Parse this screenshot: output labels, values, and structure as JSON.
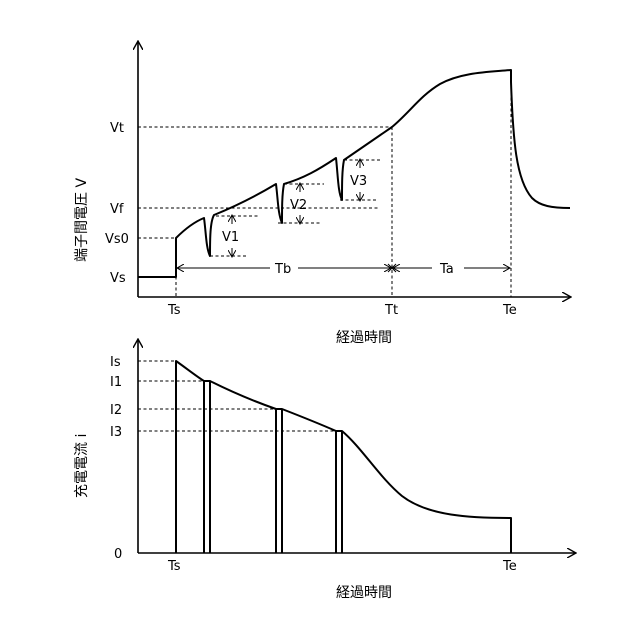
{
  "top_chart": {
    "y_axis_title": "端子間電圧 V",
    "x_axis_title": "経過時間",
    "y_labels": {
      "vt": "Vt",
      "vf": "Vf",
      "vs0": "Vs0",
      "vs": "Vs"
    },
    "x_labels": {
      "ts": "Ts",
      "tt": "Tt",
      "te": "Te"
    },
    "drops": {
      "v1": "V1",
      "v2": "V2",
      "v3": "V3"
    },
    "spans": {
      "tb": "Tb",
      "ta": "Ta"
    }
  },
  "bottom_chart": {
    "y_axis_title": "充電電流 i",
    "x_axis_title": "経過時間",
    "y_labels": {
      "is": "Is",
      "i1": "I1",
      "i2": "I2",
      "i3": "I3",
      "zero": "0"
    },
    "x_labels": {
      "ts": "Ts",
      "te": "Te"
    }
  }
}
